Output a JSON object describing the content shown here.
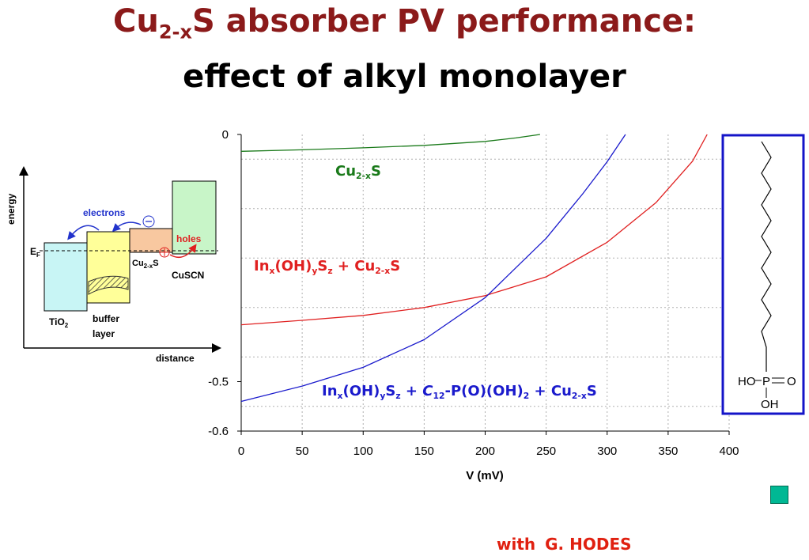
{
  "slide": {
    "title_line1": {
      "a": "Cu",
      "sub": "2-x",
      "b": "S absorber PV performance:"
    },
    "title_line2": "effect of alkyl monolayer",
    "credit": {
      "prefix": "with",
      "name": "G. HODES"
    }
  },
  "diagram": {
    "axis_y": "energy",
    "axis_x": "distance",
    "fermi": {
      "main": "E",
      "sub": "F"
    },
    "layers": [
      {
        "name": "TiO",
        "sub": "2",
        "color": "#c8f5f5"
      },
      {
        "name": "buffer",
        "name2": "layer",
        "color": "#ffff99"
      },
      {
        "name": "Cu",
        "sub": "2-x",
        "tail": "S",
        "color": "#f8c8a0"
      },
      {
        "name": "CuSCN",
        "color": "#c8f5c8"
      }
    ],
    "electrons": "electrons",
    "holes": "holes"
  },
  "molecule": {
    "label_left": "HO",
    "label_center": "P",
    "label_right": "O",
    "label_bottom": "OH"
  },
  "chart_data": {
    "type": "line",
    "xlabel": "V (mV)",
    "ylabel": "",
    "xlim": [
      0,
      400
    ],
    "ylim": [
      -0.6,
      0
    ],
    "x_ticks": [
      0,
      50,
      100,
      150,
      200,
      250,
      300,
      350,
      400
    ],
    "y_tick_labels": [
      "0",
      "-0.5",
      "-0.6"
    ],
    "y_ticks": [
      0,
      -0.5,
      -0.6
    ],
    "grid": true,
    "series": [
      {
        "name": "Cu2-xS",
        "color": "#1a7a1a",
        "label": {
          "a": "Cu",
          "sub": "2-x",
          "b": "S"
        },
        "points": [
          [
            0,
            -0.034
          ],
          [
            50,
            -0.031
          ],
          [
            100,
            -0.027
          ],
          [
            150,
            -0.022
          ],
          [
            200,
            -0.014
          ],
          [
            225,
            -0.007
          ],
          [
            245,
            0
          ]
        ]
      },
      {
        "name": "InxOHySz + Cu2-xS",
        "color": "#e02020",
        "label": {
          "t1": "In",
          "s1": "x",
          "t2": "(OH)",
          "s2": "y",
          "t3": "S",
          "s3": "z",
          "t4": " + Cu",
          "s4": "2-x",
          "t5": "S"
        },
        "points": [
          [
            0,
            -0.385
          ],
          [
            50,
            -0.376
          ],
          [
            100,
            -0.366
          ],
          [
            150,
            -0.35
          ],
          [
            200,
            -0.326
          ],
          [
            250,
            -0.288
          ],
          [
            300,
            -0.218
          ],
          [
            340,
            -0.138
          ],
          [
            370,
            -0.054
          ],
          [
            382,
            0
          ]
        ]
      },
      {
        "name": "InxOHySz + C12-P(O)(OH)2 + Cu2-xS",
        "color": "#1a1acc",
        "label": {
          "t1": "In",
          "s1": "x",
          "t2": "(OH)",
          "s2": "y",
          "t3": "S",
          "s3": "z",
          "t4": " + ",
          "i1": "C",
          "s5": "12",
          "t5": "-P(O)(OH)",
          "s6": "2",
          "t6": " + Cu",
          "s7": "2-x",
          "t7": "S"
        },
        "points": [
          [
            0,
            -0.54
          ],
          [
            50,
            -0.509
          ],
          [
            100,
            -0.471
          ],
          [
            150,
            -0.415
          ],
          [
            200,
            -0.33
          ],
          [
            250,
            -0.21
          ],
          [
            280,
            -0.12
          ],
          [
            300,
            -0.055
          ],
          [
            315,
            0
          ]
        ]
      }
    ]
  }
}
